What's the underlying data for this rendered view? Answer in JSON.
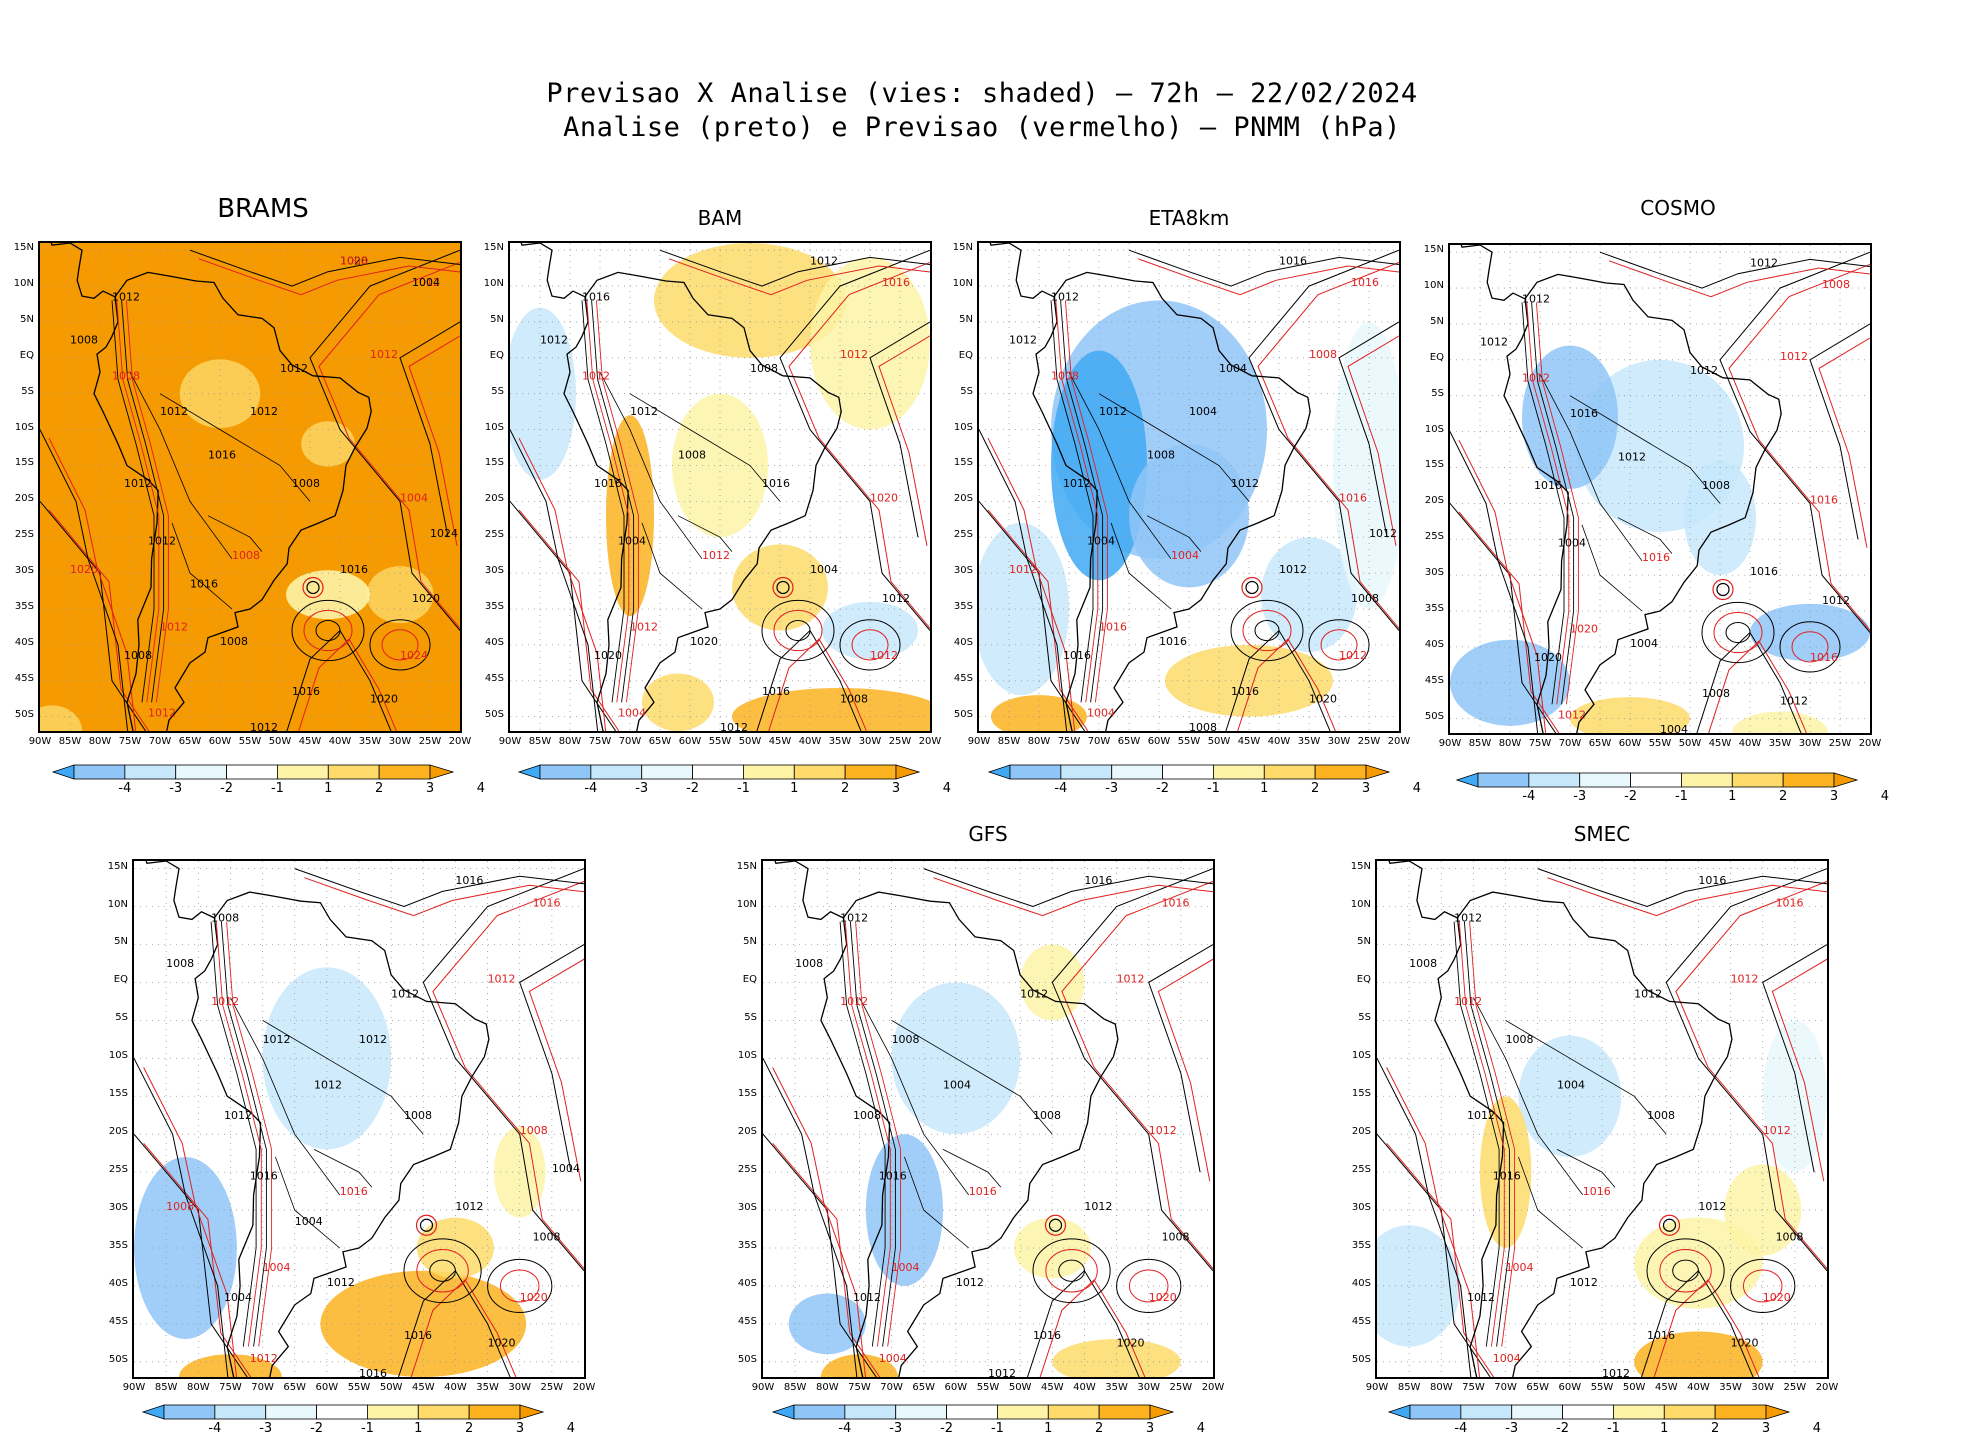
{
  "header": {
    "line1": "Previsao X Analise (vies: shaded) – 72h – 22/02/2024",
    "line2": "Analise (preto) e Previsao (vermelho) – PNMM (hPa)"
  },
  "axes": {
    "lat_labels": [
      "15N",
      "10N",
      "5N",
      "EQ",
      "5S",
      "10S",
      "15S",
      "20S",
      "25S",
      "30S",
      "35S",
      "40S",
      "45S",
      "50S"
    ],
    "lon_labels": [
      "90W",
      "85W",
      "80W",
      "75W",
      "70W",
      "65W",
      "60W",
      "55W",
      "50W",
      "45W",
      "40W",
      "35W",
      "30W",
      "25W",
      "20W"
    ]
  },
  "colorbar": {
    "labels": [
      "-4",
      "-3",
      "-2",
      "-1",
      "1",
      "2",
      "3",
      "4"
    ],
    "colors": [
      "#3fa9f5",
      "#8fc6f7",
      "#c7e7fb",
      "#e9f8fc",
      "#ffffff",
      "#fdf3a6",
      "#fdda6a",
      "#fcb31f",
      "#f59a00"
    ]
  },
  "colors": {
    "analysis": "#000000",
    "forecast": "#e02020",
    "bias_orange": "#f59a00",
    "bias_blue": "#8fc6f7"
  },
  "panels": [
    {
      "name": "BRAMS",
      "shade": "orange",
      "labels": [
        "1020",
        "1012",
        "1012",
        "1008",
        "1008",
        "1012",
        "1012",
        "1012",
        "1016",
        "1008",
        "1004",
        "1012",
        "1012",
        "1008",
        "1016",
        "1020",
        "1012",
        "1008",
        "1008",
        "1024",
        "1020",
        "1016",
        "1012",
        "1012",
        "1024",
        "1020",
        "1012",
        "1016",
        "1008",
        "1004"
      ]
    },
    {
      "name": "BAM",
      "shade": "mixed",
      "labels": [
        "1012",
        "1016",
        "1016",
        "1012",
        "1012",
        "1012",
        "1008",
        "1012",
        "1008",
        "1016",
        "1020",
        "1016",
        "1004",
        "1012",
        "1004",
        "1012",
        "1012",
        "1020",
        "1020",
        "1012",
        "1008",
        "1016",
        "1004",
        "1012"
      ]
    },
    {
      "name": "ETA8km",
      "shade": "blue",
      "labels": [
        "1016",
        "1016",
        "1012",
        "1012",
        "1008",
        "1012",
        "1004",
        "1008",
        "1008",
        "1012",
        "1016",
        "1012",
        "1004",
        "1004",
        "1012",
        "1008",
        "1016",
        "1016",
        "1016",
        "1012",
        "1020",
        "1016",
        "1004",
        "1008",
        "1012",
        "1012",
        "1004"
      ]
    },
    {
      "name": "COSMO",
      "shade": "mixed-blue",
      "labels": [
        "1012",
        "1008",
        "1012",
        "1012",
        "1012",
        "1016",
        "1012",
        "1012",
        "1012",
        "1008",
        "1016",
        "1016",
        "1004",
        "1016",
        "1016",
        "1012",
        "1020",
        "1020",
        "1004",
        "1016",
        "1012",
        "1008",
        "1012",
        "1004"
      ]
    },
    {
      "name": "",
      "shade": "blue-orange",
      "labels": [
        "1016",
        "1016",
        "1008",
        "1008",
        "1012",
        "1012",
        "1012",
        "1012",
        "1012",
        "1008",
        "1008",
        "1012",
        "1016",
        "1016",
        "1012",
        "1008",
        "1004",
        "1004",
        "1012",
        "1020",
        "1020",
        "1016",
        "1012",
        "1016",
        "1004",
        "1008",
        "1012",
        "1004"
      ]
    },
    {
      "name": "GFS",
      "shade": "light",
      "labels": [
        "1016",
        "1016",
        "1012",
        "1008",
        "1012",
        "1008",
        "1012",
        "1012",
        "1004",
        "1008",
        "1012",
        "1008",
        "1016",
        "1016",
        "1012",
        "1008",
        "1004",
        "1012",
        "1012",
        "1020",
        "1020",
        "1016",
        "1004",
        "1012"
      ]
    },
    {
      "name": "SMEC",
      "shade": "light-orange",
      "labels": [
        "1016",
        "1016",
        "1012",
        "1008",
        "1012",
        "1008",
        "1012",
        "1012",
        "1004",
        "1008",
        "1012",
        "1012",
        "1016",
        "1016",
        "1012",
        "1008",
        "1004",
        "1012",
        "1012",
        "1020",
        "1020",
        "1016",
        "1004",
        "1012"
      ]
    }
  ]
}
